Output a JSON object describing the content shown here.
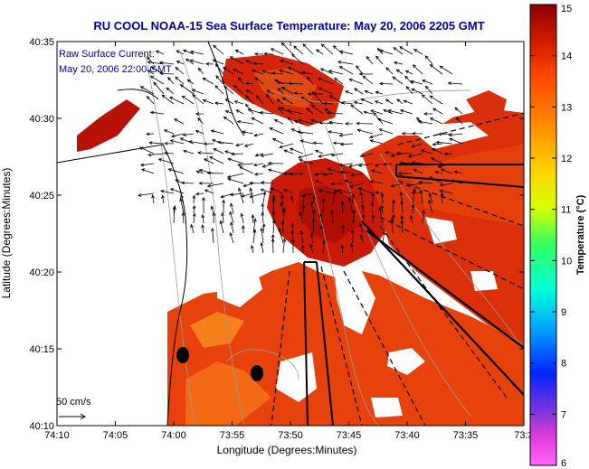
{
  "title": "RU COOL  NOAA-15  Sea Surface Temperature:  May 20, 2006 2205 GMT",
  "map": {
    "annotation_line1": "Raw Surface Current:",
    "annotation_line2": "May 20, 2006 22:00 GMT",
    "scale_label": "50 cm/s",
    "xlabel": "Longitude (Degrees:Minutes)",
    "ylabel": "Latitude (Degrees:Minutes)",
    "x_ticks": [
      "74:10",
      "74:05",
      "74:00",
      "73:55",
      "73:50",
      "73:45",
      "73:40",
      "73:35",
      "73:3"
    ],
    "y_ticks": [
      "40:35",
      "40:30",
      "40:25",
      "40:20",
      "40:15",
      "40:10"
    ]
  },
  "colorbar": {
    "label": "Temperature (°C)",
    "ticks": [
      "15",
      "14",
      "13",
      "12",
      "11",
      "10",
      "9",
      "8",
      "7",
      "6"
    ],
    "range": [
      6,
      15
    ],
    "colors": [
      "#e13cd8",
      "#7b34e0",
      "#0025ff",
      "#00a6ff",
      "#00ffd9",
      "#35ff5e",
      "#d7ff00",
      "#ffd300",
      "#ff8a00",
      "#ff4a00",
      "#cf1c00",
      "#8c0000"
    ]
  },
  "colors": {
    "title": "#00009c",
    "land": "#ffffff",
    "sst_warm": "#e8420c",
    "sst_hot": "#c81a06",
    "sst_orange": "#f26a14"
  }
}
